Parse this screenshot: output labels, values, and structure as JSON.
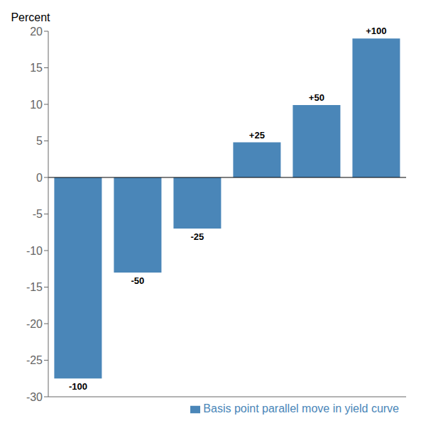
{
  "chart_data": {
    "type": "bar",
    "categories": [
      "-100",
      "-50",
      "-25",
      "+25",
      "+50",
      "+100"
    ],
    "series": [
      {
        "name": "Basis point parallel move in yield curve",
        "color": "#4a86b8",
        "values": [
          -27.5,
          -13.0,
          -7.0,
          4.8,
          9.9,
          19.0
        ]
      }
    ],
    "y_label": "Percent",
    "ylim": [
      -30,
      20
    ],
    "yticks": [
      -30,
      -25,
      -20,
      -15,
      -10,
      -5,
      0,
      5,
      10,
      15,
      20
    ],
    "grid": false,
    "legend": "lower right",
    "tick_labels": "y"
  }
}
